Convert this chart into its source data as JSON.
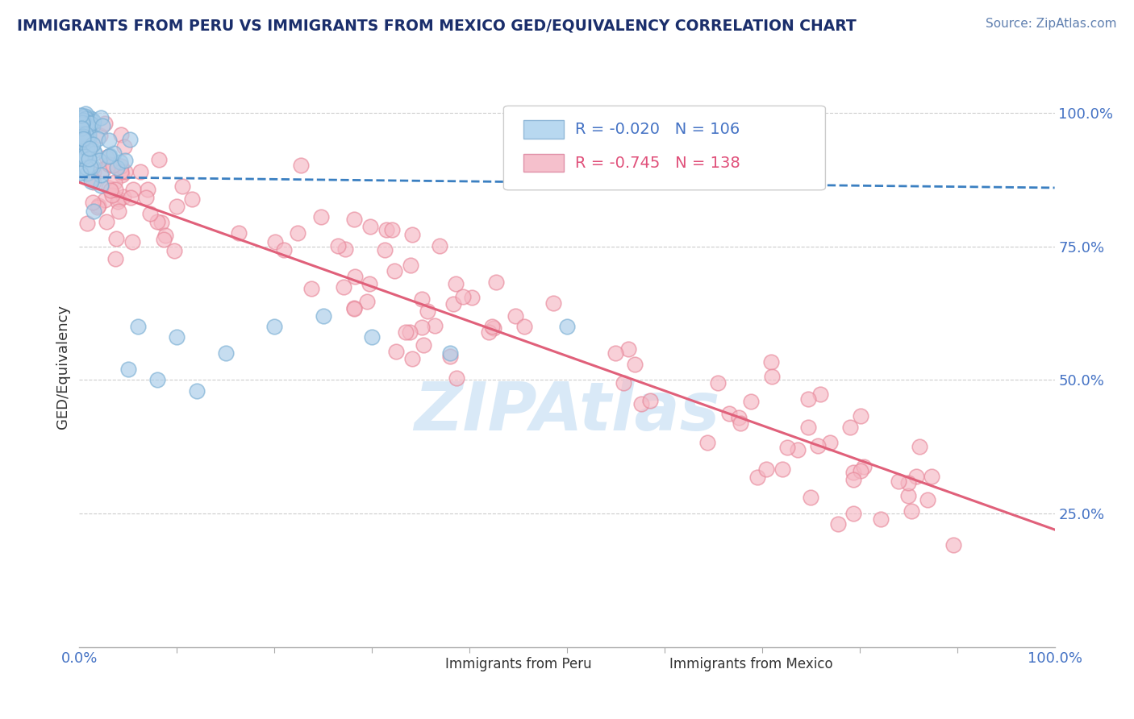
{
  "title": "IMMIGRANTS FROM PERU VS IMMIGRANTS FROM MEXICO GED/EQUIVALENCY CORRELATION CHART",
  "source": "Source: ZipAtlas.com",
  "ylabel": "GED/Equivalency",
  "r_peru": -0.02,
  "n_peru": 106,
  "r_mexico": -0.745,
  "n_mexico": 138,
  "color_peru": "#a8cce8",
  "color_peru_edge": "#7aafd4",
  "color_peru_line": "#3a7fc1",
  "color_mexico": "#f5b8c4",
  "color_mexico_edge": "#e8889a",
  "color_mexico_line": "#e0607a",
  "color_grid": "#cccccc",
  "legend_color_peru_fill": "#b8d8f0",
  "legend_color_peru_edge": "#90b8d8",
  "legend_color_mexico_fill": "#f5c0cc",
  "legend_color_mexico_edge": "#e090a8",
  "background_color": "#ffffff",
  "title_color": "#1a2e6b",
  "source_color": "#6080b0",
  "tick_color": "#4472c4",
  "ylabel_color": "#333333",
  "watermark_text": "ZIPAtlas",
  "watermark_color": "#d0e4f5"
}
